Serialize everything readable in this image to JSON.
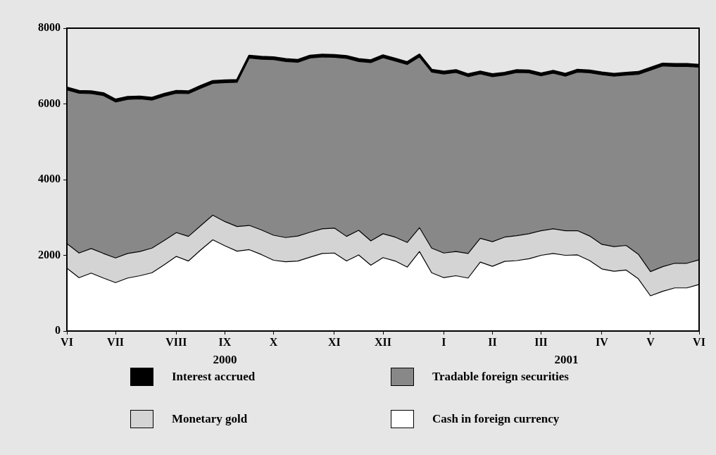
{
  "chart_data": {
    "type": "area",
    "stacked": true,
    "legend": "bottom",
    "grid": false,
    "categories": [
      "VI",
      null,
      null,
      null,
      "VII",
      null,
      null,
      null,
      null,
      "VIII",
      null,
      null,
      null,
      "IX",
      null,
      null,
      null,
      "X",
      null,
      null,
      null,
      null,
      "XI",
      null,
      null,
      null,
      "XII",
      null,
      null,
      null,
      null,
      "I",
      null,
      null,
      null,
      "II",
      null,
      null,
      null,
      "III",
      null,
      null,
      null,
      null,
      "IV",
      null,
      null,
      null,
      "V",
      null,
      null,
      null,
      "VI"
    ],
    "series": [
      {
        "name": "Cash in foreign currency",
        "color": "#ffffff",
        "values": [
          1660,
          1410,
          1530,
          1400,
          1280,
          1400,
          1460,
          1540,
          1750,
          1970,
          1850,
          2140,
          2410,
          2250,
          2110,
          2150,
          2020,
          1870,
          1830,
          1850,
          1950,
          2050,
          2060,
          1850,
          2010,
          1740,
          1940,
          1850,
          1690,
          2100,
          1540,
          1410,
          1460,
          1400,
          1820,
          1710,
          1840,
          1860,
          1910,
          2000,
          2050,
          2000,
          2010,
          1860,
          1640,
          1580,
          1610,
          1380,
          930,
          1050,
          1140,
          1140,
          1230
        ]
      },
      {
        "name": "Monetary gold",
        "color": "#d4d4d4",
        "values": [
          650,
          650,
          650,
          650,
          650,
          650,
          640,
          650,
          640,
          630,
          650,
          640,
          650,
          640,
          650,
          640,
          650,
          660,
          640,
          660,
          660,
          650,
          660,
          650,
          650,
          640,
          630,
          630,
          650,
          630,
          650,
          650,
          640,
          650,
          630,
          650,
          640,
          660,
          660,
          650,
          650,
          650,
          640,
          650,
          650,
          650,
          650,
          650,
          640,
          650,
          650,
          650,
          650
        ]
      },
      {
        "name": "Tradable foreign securities",
        "color": "#888888",
        "values": [
          4060,
          4220,
          4090,
          4170,
          4120,
          4070,
          4030,
          3910,
          3810,
          3680,
          3770,
          3630,
          3480,
          3670,
          3810,
          4420,
          4510,
          4640,
          4650,
          4590,
          4600,
          4540,
          4510,
          4700,
          4460,
          4710,
          4650,
          4650,
          4700,
          4510,
          4650,
          4730,
          4730,
          4670,
          4340,
          4360,
          4280,
          4310,
          4250,
          4090,
          4110,
          4080,
          4190,
          4310,
          4480,
          4500,
          4500,
          4750,
          5320,
          5300,
          5200,
          5200,
          5090
        ]
      },
      {
        "name": "Interest accrued",
        "color": "#000000",
        "values": [
          60,
          60,
          60,
          60,
          60,
          60,
          60,
          60,
          60,
          60,
          60,
          60,
          60,
          60,
          60,
          60,
          60,
          60,
          60,
          60,
          60,
          60,
          60,
          60,
          60,
          60,
          60,
          60,
          60,
          60,
          60,
          60,
          60,
          60,
          60,
          60,
          60,
          60,
          60,
          60,
          60,
          60,
          60,
          60,
          60,
          60,
          60,
          60,
          60,
          60,
          60,
          60,
          60
        ]
      }
    ],
    "ylim": [
      0,
      8000
    ],
    "yticks": [
      0,
      2000,
      4000,
      6000,
      8000
    ],
    "annotations": [
      "2000",
      "2001"
    ]
  }
}
